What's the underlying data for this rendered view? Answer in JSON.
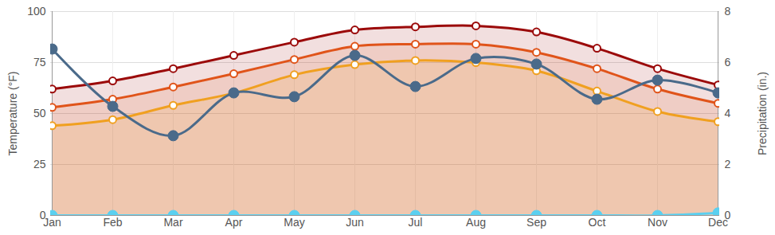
{
  "chart_data": {
    "type": "line",
    "categories": [
      "Jan",
      "Feb",
      "Mar",
      "Apr",
      "May",
      "Jun",
      "Jul",
      "Aug",
      "Sep",
      "Oct",
      "Nov",
      "Dec"
    ],
    "ylabel": "Temperature (°F)",
    "y2label": "Precipitation (in.)",
    "ylim": [
      0,
      100
    ],
    "yticks": [
      0,
      25,
      50,
      75,
      100
    ],
    "y2lim": [
      0,
      8
    ],
    "y2ticks": [
      0,
      2,
      4,
      6,
      8
    ],
    "grid": true,
    "series": [
      {
        "type": "area",
        "color": "#9b0a0a",
        "marker": "circle-open",
        "values": [
          62,
          66,
          72,
          78.5,
          85,
          91,
          92.5,
          93,
          90,
          82,
          72,
          64
        ]
      },
      {
        "type": "area",
        "color": "#e0541a",
        "marker": "circle-open",
        "values": [
          53,
          57,
          63,
          69.5,
          76.5,
          83,
          84,
          84,
          80,
          72,
          62,
          55
        ]
      },
      {
        "type": "area",
        "color": "#f0a020",
        "marker": "circle-open",
        "values": [
          44,
          47,
          54,
          60,
          69,
          74,
          76,
          75,
          71,
          61,
          51,
          46
        ]
      },
      {
        "type": "line",
        "axis": "y2",
        "color": "#4a6a8a",
        "marker": "circle",
        "values": [
          6.53,
          4.28,
          3.13,
          4.81,
          4.66,
          6.28,
          5.06,
          6.16,
          5.94,
          4.56,
          5.31,
          4.81
        ]
      },
      {
        "type": "line",
        "axis": "y2",
        "color": "#5bd0f0",
        "marker": "circle",
        "values": [
          0,
          0,
          0,
          0,
          0,
          0,
          0,
          0,
          0,
          0,
          0,
          0.1
        ]
      }
    ]
  }
}
